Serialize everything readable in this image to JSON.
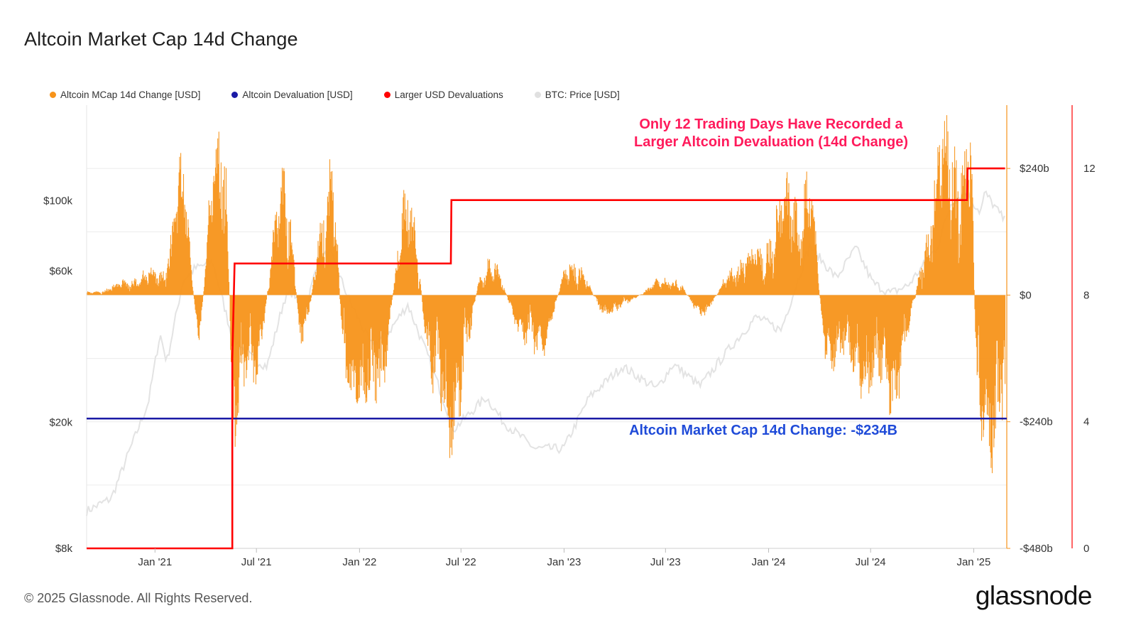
{
  "title": "Altcoin Market Cap 14d Change",
  "legend": [
    {
      "label": "Altcoin MCap 14d Change [USD]",
      "color": "#f7931a"
    },
    {
      "label": "Altcoin Devaluation [USD]",
      "color": "#1a1aa6"
    },
    {
      "label": "Larger USD Devaluations",
      "color": "#ff0000"
    },
    {
      "label": "BTC: Price [USD]",
      "color": "#d9d9d9"
    }
  ],
  "annotations": {
    "red_line1": "Only 12 Trading Days Have Recorded a",
    "red_line2": "Larger Altcoin Devaluation (14d Change)",
    "blue": "Altcoin Market Cap 14d Change: -$234B"
  },
  "footer": "© 2025 Glassnode. All Rights Reserved.",
  "brand": "glassnode",
  "chart_data": {
    "type": "bar",
    "x_range": [
      "2020-09-01",
      "2025-03-01"
    ],
    "x_ticks": [
      "Jan '21",
      "Jul '21",
      "Jan '22",
      "Jul '22",
      "Jan '23",
      "Jul '23",
      "Jan '24",
      "Jul '24",
      "Jan '25"
    ],
    "left_axis": {
      "label": "BTC: Price [USD]",
      "scale": "log",
      "ticks": [
        "$8k",
        "$20k",
        "$60k",
        "$100k"
      ],
      "tick_values": [
        8000,
        20000,
        60000,
        100000
      ],
      "range": [
        8000,
        200000
      ]
    },
    "right_axis_1": {
      "label": "Altcoin MCap 14d Change [USD]",
      "ticks": [
        "$240b",
        "$0",
        "-$240b",
        "-$480b"
      ],
      "tick_values": [
        240,
        0,
        -240,
        -480
      ],
      "unit": "billion USD",
      "range": [
        -480,
        360
      ]
    },
    "right_axis_2": {
      "label": "Larger USD Devaluations",
      "ticks": [
        "12",
        "8",
        "4",
        "0"
      ],
      "tick_values": [
        12,
        8,
        4,
        0
      ],
      "range": [
        0,
        14
      ]
    },
    "devaluation_level": -234,
    "series": [
      {
        "name": "Larger USD Devaluations",
        "type": "step",
        "points": [
          [
            "2020-09-01",
            0
          ],
          [
            "2021-05-19",
            0
          ],
          [
            "2021-05-19",
            6
          ],
          [
            "2021-05-23",
            9
          ],
          [
            "2022-06-13",
            9
          ],
          [
            "2022-06-14",
            11
          ],
          [
            "2024-12-20",
            11
          ],
          [
            "2024-12-21",
            12
          ],
          [
            "2025-02-26",
            12
          ]
        ]
      },
      {
        "name": "Altcoin MCap 14d Change [USD]",
        "type": "bar",
        "peaks": [
          [
            "2020-09-01",
            5
          ],
          [
            "2021-01-10",
            40
          ],
          [
            "2021-02-20",
            190
          ],
          [
            "2021-03-20",
            -60
          ],
          [
            "2021-04-15",
            205
          ],
          [
            "2021-05-05",
            275
          ],
          [
            "2021-05-22",
            -230
          ],
          [
            "2021-06-20",
            -150
          ],
          [
            "2021-08-25",
            200
          ],
          [
            "2021-09-20",
            -80
          ],
          [
            "2021-11-10",
            220
          ],
          [
            "2021-12-10",
            -160
          ],
          [
            "2022-01-25",
            -200
          ],
          [
            "2022-04-01",
            160
          ],
          [
            "2022-05-15",
            -180
          ],
          [
            "2022-06-18",
            -220
          ],
          [
            "2022-08-15",
            60
          ],
          [
            "2022-11-10",
            -100
          ],
          [
            "2023-01-20",
            60
          ],
          [
            "2023-03-15",
            -30
          ],
          [
            "2023-07-15",
            30
          ],
          [
            "2023-09-01",
            -30
          ],
          [
            "2023-11-15",
            60
          ],
          [
            "2024-03-10",
            200
          ],
          [
            "2024-04-15",
            -100
          ],
          [
            "2024-08-05",
            -170
          ],
          [
            "2024-11-20",
            270
          ],
          [
            "2024-12-25",
            250
          ],
          [
            "2025-01-10",
            -230
          ],
          [
            "2025-02-03",
            -234
          ],
          [
            "2025-02-26",
            -220
          ]
        ]
      },
      {
        "name": "BTC: Price [USD]",
        "type": "line",
        "points": [
          [
            "2020-09-01",
            10500
          ],
          [
            "2020-10-15",
            11500
          ],
          [
            "2020-11-15",
            16000
          ],
          [
            "2020-12-20",
            23000
          ],
          [
            "2021-01-10",
            38000
          ],
          [
            "2021-01-22",
            31000
          ],
          [
            "2021-02-20",
            56000
          ],
          [
            "2021-03-13",
            61000
          ],
          [
            "2021-04-14",
            64000
          ],
          [
            "2021-05-19",
            37000
          ],
          [
            "2021-06-22",
            32000
          ],
          [
            "2021-07-20",
            30000
          ],
          [
            "2021-08-20",
            49000
          ],
          [
            "2021-09-06",
            52000
          ],
          [
            "2021-09-21",
            41000
          ],
          [
            "2021-10-20",
            66000
          ],
          [
            "2021-11-10",
            68000
          ],
          [
            "2021-12-15",
            48000
          ],
          [
            "2022-01-22",
            35000
          ],
          [
            "2022-02-20",
            38000
          ],
          [
            "2022-03-28",
            47000
          ],
          [
            "2022-05-10",
            30000
          ],
          [
            "2022-06-18",
            19000
          ],
          [
            "2022-08-15",
            24000
          ],
          [
            "2022-09-15",
            20000
          ],
          [
            "2022-11-10",
            16500
          ],
          [
            "2022-12-31",
            16500
          ],
          [
            "2023-02-15",
            24000
          ],
          [
            "2023-04-15",
            30000
          ],
          [
            "2023-06-15",
            25500
          ],
          [
            "2023-07-15",
            30500
          ],
          [
            "2023-09-01",
            26000
          ],
          [
            "2023-10-25",
            34500
          ],
          [
            "2023-12-10",
            43000
          ],
          [
            "2024-01-23",
            39000
          ],
          [
            "2024-03-14",
            72000
          ],
          [
            "2024-05-01",
            57000
          ],
          [
            "2024-06-05",
            71000
          ],
          [
            "2024-07-05",
            55000
          ],
          [
            "2024-08-05",
            51000
          ],
          [
            "2024-09-06",
            54000
          ],
          [
            "2024-10-29",
            72000
          ],
          [
            "2024-11-22",
            99000
          ],
          [
            "2024-12-17",
            106000
          ],
          [
            "2025-01-13",
            92000
          ],
          [
            "2025-01-21",
            106000
          ],
          [
            "2025-02-26",
            86000
          ]
        ]
      }
    ]
  }
}
